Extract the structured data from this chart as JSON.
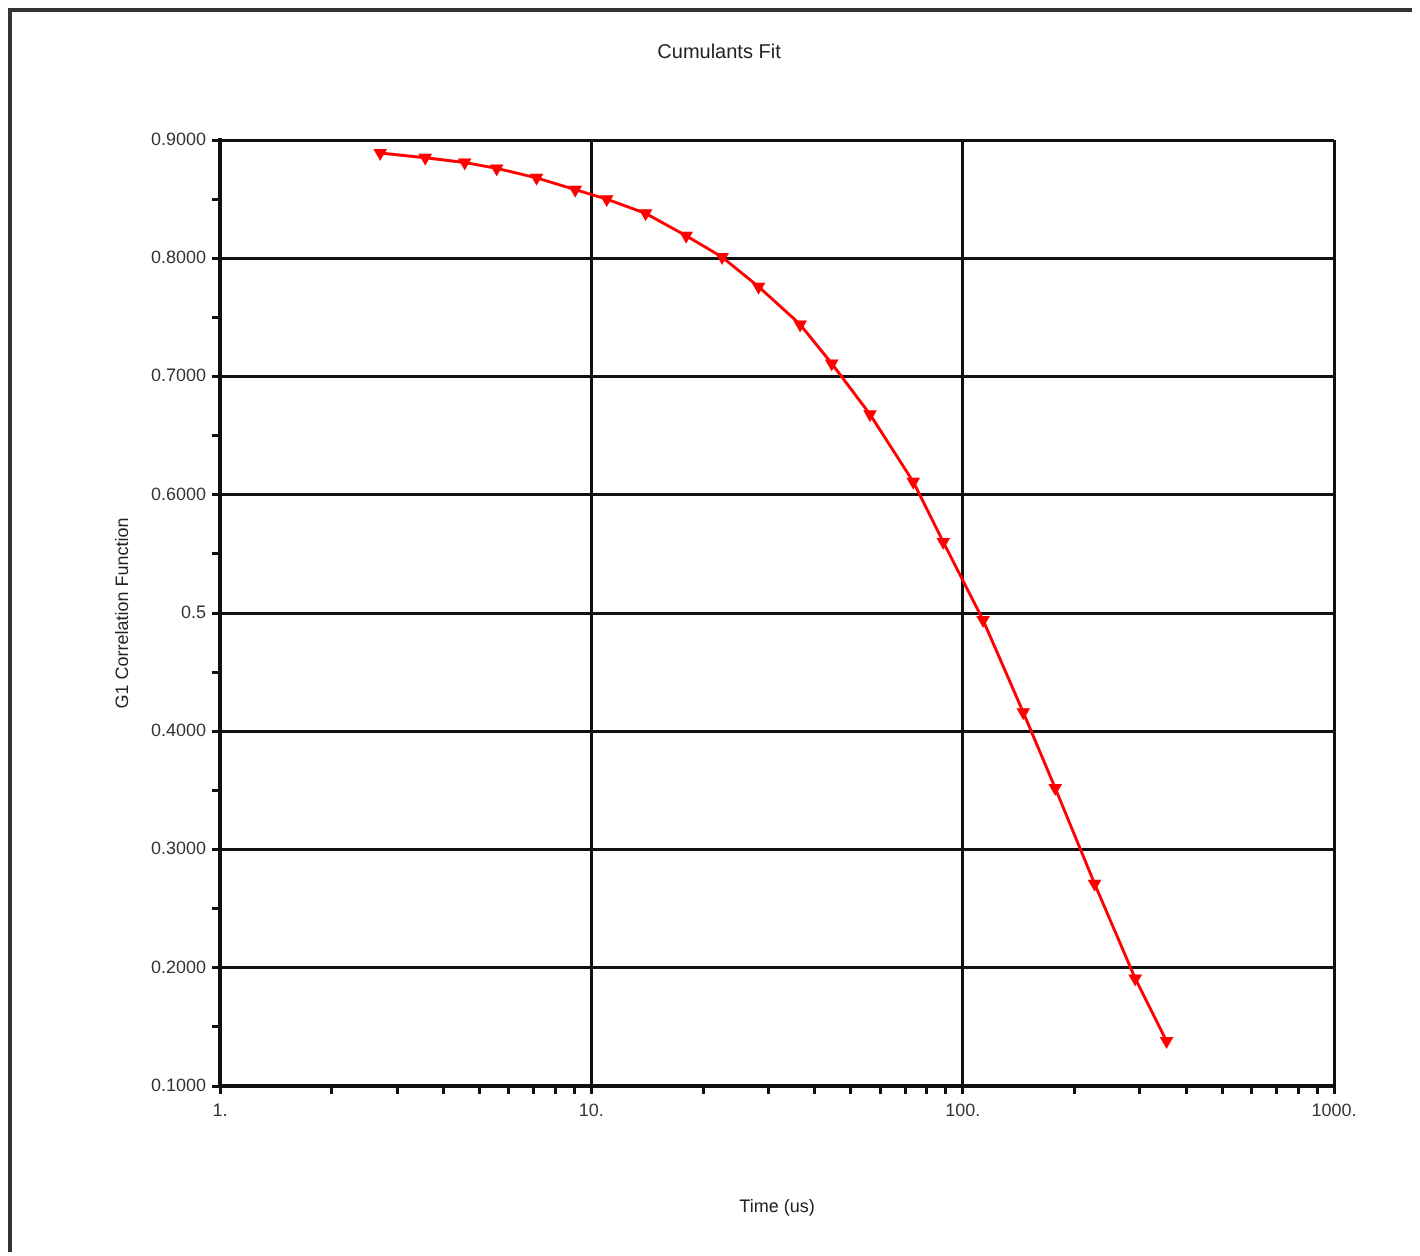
{
  "chart_data": {
    "type": "line",
    "title": "Cumulants Fit",
    "xlabel": "Time (us)",
    "ylabel": "G1 Correlation Function",
    "log": "x",
    "grid": true,
    "legend": false,
    "marker": "triangle",
    "line_style": "solid",
    "xlim": [
      1,
      1000
    ],
    "xticks": [
      {
        "value": 1,
        "label": "1."
      },
      {
        "value": 2,
        "label": null
      },
      {
        "value": 3,
        "label": null
      },
      {
        "value": 4,
        "label": null
      },
      {
        "value": 5,
        "label": null
      },
      {
        "value": 6,
        "label": null
      },
      {
        "value": 7,
        "label": null
      },
      {
        "value": 8,
        "label": null
      },
      {
        "value": 9,
        "label": null
      },
      {
        "value": 10,
        "label": "10."
      },
      {
        "value": 20,
        "label": null
      },
      {
        "value": 30,
        "label": null
      },
      {
        "value": 40,
        "label": null
      },
      {
        "value": 50,
        "label": null
      },
      {
        "value": 60,
        "label": null
      },
      {
        "value": 70,
        "label": null
      },
      {
        "value": 80,
        "label": null
      },
      {
        "value": 90,
        "label": null
      },
      {
        "value": 100,
        "label": "100."
      },
      {
        "value": 200,
        "label": null
      },
      {
        "value": 300,
        "label": null
      },
      {
        "value": 400,
        "label": null
      },
      {
        "value": 500,
        "label": null
      },
      {
        "value": 600,
        "label": null
      },
      {
        "value": 700,
        "label": null
      },
      {
        "value": 800,
        "label": null
      },
      {
        "value": 900,
        "label": null
      },
      {
        "value": 1000,
        "label": "1000."
      }
    ],
    "ylim": [
      0.1,
      0.9
    ],
    "yticks": [
      {
        "value": 0.1,
        "label": "0.1000"
      },
      {
        "value": 0.15,
        "label": null
      },
      {
        "value": 0.2,
        "label": "0.2000"
      },
      {
        "value": 0.25,
        "label": null
      },
      {
        "value": 0.3,
        "label": "0.3000"
      },
      {
        "value": 0.35,
        "label": null
      },
      {
        "value": 0.4,
        "label": "0.4000"
      },
      {
        "value": 0.45,
        "label": null
      },
      0.5,
      {
        "value": 0.55,
        "label": null
      },
      {
        "value": 0.6,
        "label": "0.6000"
      },
      {
        "value": 0.65,
        "label": null
      },
      {
        "value": 0.7,
        "label": "0.7000"
      },
      {
        "value": 0.75,
        "label": null
      },
      {
        "value": 0.8,
        "label": "0.8000"
      },
      {
        "value": 0.85,
        "label": null
      },
      {
        "value": 0.9,
        "label": "0.9000"
      }
    ],
    "x": [
      2.7,
      3.57,
      4.56,
      5.56,
      7.12,
      9.05,
      11.0,
      14.0,
      18.0,
      22.5,
      28.2,
      36.5,
      44.4,
      56.3,
      73.6,
      88.7,
      113.5,
      145.6,
      177.5,
      226.6,
      291.5,
      354
    ],
    "series": [
      {
        "color": "#ff0000",
        "values": [
          0.889,
          0.885,
          0.881,
          0.876,
          0.868,
          0.858,
          0.85,
          0.838,
          0.819,
          0.801,
          0.776,
          0.744,
          0.711,
          0.668,
          0.611,
          0.56,
          0.494,
          0.416,
          0.352,
          0.271,
          0.191,
          0.138
        ]
      }
    ]
  }
}
